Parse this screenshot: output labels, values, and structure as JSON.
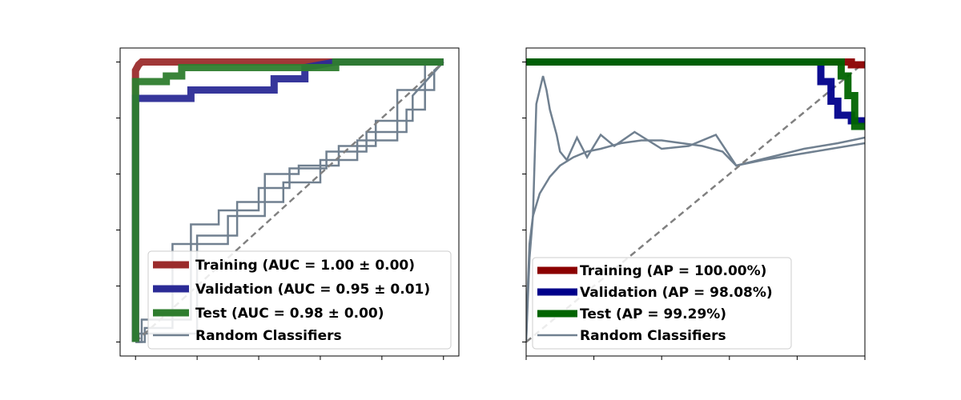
{
  "chart_data": [
    {
      "type": "line",
      "subtype": "roc",
      "title": "",
      "xlabel": "",
      "ylabel": "",
      "xlim": [
        -0.05,
        1.05
      ],
      "ylim": [
        -0.05,
        1.05
      ],
      "x_ticks": [
        0,
        0.2,
        0.4,
        0.6,
        0.8,
        1.0
      ],
      "y_ticks": [
        0,
        0.2,
        0.4,
        0.6,
        0.8,
        1.0
      ],
      "tick_labels_visible": false,
      "grid": false,
      "legend_position": "lower-right",
      "legend": [
        {
          "label": "Training (AUC = 1.00 ± 0.00)",
          "color": "#9b2c2c"
        },
        {
          "label": "Validation (AUC = 0.95 ± 0.01)",
          "color": "#2b2b96"
        },
        {
          "label": "Test (AUC = 0.98 ± 0.00)",
          "color": "#2e7d2e"
        },
        {
          "label": "Random Classifiers",
          "color": "#708090"
        }
      ],
      "series": [
        {
          "color": "#9b2c2c",
          "style": "thick",
          "x": [
            0,
            0,
            0.01,
            0.02,
            0.6,
            1.0
          ],
          "y": [
            0,
            0.97,
            0.99,
            1.0,
            1.0,
            1.0
          ]
        },
        {
          "color": "#2b2b96",
          "style": "thick",
          "x": [
            0,
            0,
            0.18,
            0.18,
            0.45,
            0.45,
            0.55,
            0.55,
            0.65,
            1.0
          ],
          "y": [
            0,
            0.87,
            0.87,
            0.9,
            0.9,
            0.94,
            0.94,
            0.98,
            1.0,
            1.0
          ]
        },
        {
          "color": "#2e7d2e",
          "style": "thick",
          "x": [
            0,
            0,
            0.1,
            0.1,
            0.15,
            0.15,
            0.65,
            0.65,
            1.0
          ],
          "y": [
            0,
            0.93,
            0.93,
            0.95,
            0.95,
            0.98,
            0.98,
            1.0,
            1.0
          ]
        },
        {
          "color": "#708090",
          "style": "thin",
          "x": [
            0,
            0.02,
            0.02,
            0.18,
            0.18,
            0.27,
            0.27,
            0.4,
            0.4,
            0.5,
            0.5,
            0.62,
            0.62,
            0.75,
            0.75,
            0.88,
            0.88,
            0.94,
            0.94,
            1.0
          ],
          "y": [
            0,
            0,
            0.08,
            0.08,
            0.42,
            0.42,
            0.47,
            0.47,
            0.55,
            0.55,
            0.62,
            0.62,
            0.68,
            0.68,
            0.75,
            0.75,
            0.83,
            0.83,
            1.0,
            1.0
          ]
        },
        {
          "color": "#708090",
          "style": "thin",
          "x": [
            0,
            0.03,
            0.03,
            0.12,
            0.12,
            0.3,
            0.3,
            0.42,
            0.42,
            0.53,
            0.53,
            0.66,
            0.66,
            0.78,
            0.78,
            0.9,
            0.9,
            1.0
          ],
          "y": [
            0,
            0,
            0.05,
            0.05,
            0.35,
            0.35,
            0.45,
            0.45,
            0.6,
            0.6,
            0.63,
            0.63,
            0.7,
            0.7,
            0.79,
            0.79,
            0.88,
            1.0
          ]
        },
        {
          "color": "#708090",
          "style": "thin",
          "x": [
            0,
            0.01,
            0.01,
            0.2,
            0.2,
            0.33,
            0.33,
            0.48,
            0.48,
            0.6,
            0.6,
            0.72,
            0.72,
            0.85,
            0.85,
            0.97,
            0.97,
            1.0
          ],
          "y": [
            0,
            0,
            0.03,
            0.03,
            0.38,
            0.38,
            0.5,
            0.5,
            0.57,
            0.57,
            0.65,
            0.65,
            0.72,
            0.72,
            0.9,
            0.9,
            0.97,
            1.0
          ]
        },
        {
          "color": "#808080",
          "style": "dashed",
          "x": [
            0,
            1
          ],
          "y": [
            0,
            1
          ]
        }
      ]
    },
    {
      "type": "line",
      "subtype": "precision-recall",
      "title": "",
      "xlabel": "",
      "ylabel": "",
      "xlim": [
        0,
        1.0
      ],
      "ylim": [
        -0.05,
        1.05
      ],
      "x_ticks": [
        0,
        0.2,
        0.4,
        0.6,
        0.8,
        1.0
      ],
      "y_ticks": [
        0,
        0.2,
        0.4,
        0.6,
        0.8,
        1.0
      ],
      "tick_labels_visible": false,
      "grid": false,
      "legend_position": "lower-left",
      "legend": [
        {
          "label": "Training (AP = 100.00%)",
          "color": "#8b0000"
        },
        {
          "label": "Validation (AP = 98.08%)",
          "color": "#00008b"
        },
        {
          "label": "Test (AP = 99.29%)",
          "color": "#006400"
        },
        {
          "label": "Random Classifiers",
          "color": "#708090"
        }
      ],
      "series": [
        {
          "color": "#8b0000",
          "style": "thick",
          "x": [
            0,
            0.96,
            0.96,
            1.0
          ],
          "y": [
            1.0,
            1.0,
            0.99,
            0.99
          ]
        },
        {
          "color": "#00008b",
          "style": "thick",
          "x": [
            0,
            0.87,
            0.87,
            0.9,
            0.9,
            0.92,
            0.92,
            0.96,
            0.96,
            1.0
          ],
          "y": [
            1.0,
            1.0,
            0.93,
            0.93,
            0.86,
            0.86,
            0.81,
            0.81,
            0.79,
            0.79
          ]
        },
        {
          "color": "#006400",
          "style": "thick",
          "x": [
            0,
            0.93,
            0.93,
            0.95,
            0.95,
            0.97,
            0.97,
            1.0
          ],
          "y": [
            1.0,
            1.0,
            0.95,
            0.95,
            0.88,
            0.88,
            0.77,
            0.77
          ]
        },
        {
          "color": "#708090",
          "style": "thin",
          "x": [
            0,
            0.005,
            0.01,
            0.02,
            0.04,
            0.07,
            0.1,
            0.14,
            0.18,
            0.22,
            0.28,
            0.34,
            0.4,
            0.46,
            0.52,
            0.58,
            0.62,
            0.7,
            0.8,
            0.9,
            1.0
          ],
          "y": [
            0,
            0.2,
            0.35,
            0.45,
            0.53,
            0.59,
            0.63,
            0.66,
            0.68,
            0.69,
            0.71,
            0.72,
            0.72,
            0.71,
            0.7,
            0.68,
            0.63,
            0.65,
            0.67,
            0.69,
            0.71
          ]
        },
        {
          "color": "#708090",
          "style": "thin",
          "x": [
            0,
            0.01,
            0.02,
            0.03,
            0.05,
            0.06,
            0.07,
            0.09,
            0.1,
            0.12,
            0.15,
            0.18,
            0.22,
            0.26,
            0.32,
            0.4,
            0.48,
            0.56,
            0.62,
            0.72,
            0.82,
            0.92,
            1.0
          ],
          "y": [
            0,
            0.3,
            0.45,
            0.85,
            0.95,
            0.9,
            0.83,
            0.74,
            0.68,
            0.65,
            0.73,
            0.66,
            0.74,
            0.7,
            0.75,
            0.69,
            0.7,
            0.74,
            0.63,
            0.66,
            0.69,
            0.71,
            0.73
          ]
        },
        {
          "color": "#808080",
          "style": "dashed",
          "x": [
            0,
            1
          ],
          "y": [
            0,
            1
          ]
        }
      ]
    }
  ]
}
